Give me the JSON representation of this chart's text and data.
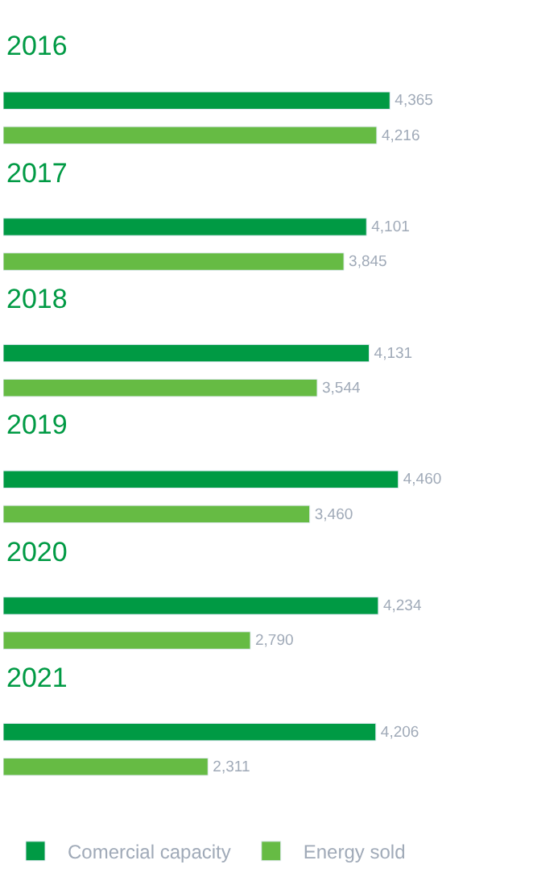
{
  "chart_data": {
    "type": "bar",
    "orientation": "horizontal",
    "categories": [
      "2016",
      "2017",
      "2018",
      "2019",
      "2020",
      "2021"
    ],
    "series": [
      {
        "name": "Comercial capacity",
        "color": "#009a44",
        "values": [
          4365,
          4101,
          4131,
          4460,
          4234,
          4206
        ],
        "value_labels": [
          "4,365",
          "4,101",
          "4,131",
          "4,460",
          "4,234",
          "4,206"
        ]
      },
      {
        "name": "Energy sold",
        "color": "#66bb44",
        "values": [
          4216,
          3845,
          3544,
          3460,
          2790,
          2311
        ],
        "value_labels": [
          "4,216",
          "3,845",
          "3,544",
          "3,460",
          "2,790",
          "2,311"
        ]
      }
    ],
    "legend": "bottom"
  }
}
